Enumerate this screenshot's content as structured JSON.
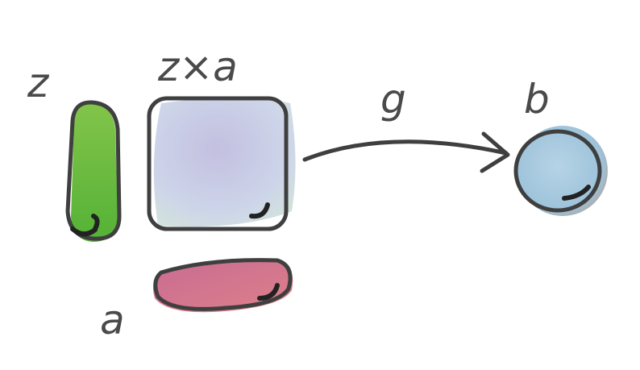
{
  "labels": {
    "z": "z",
    "product": "z×a",
    "a": "a",
    "arrow": "g",
    "b": "b"
  },
  "colors": {
    "z_fill": "#6cc23c",
    "product_fill": "#c6cde6",
    "a_fill": "#d4728f",
    "b_fill": "#a9c8dc",
    "ink": "#3f3f3f"
  }
}
